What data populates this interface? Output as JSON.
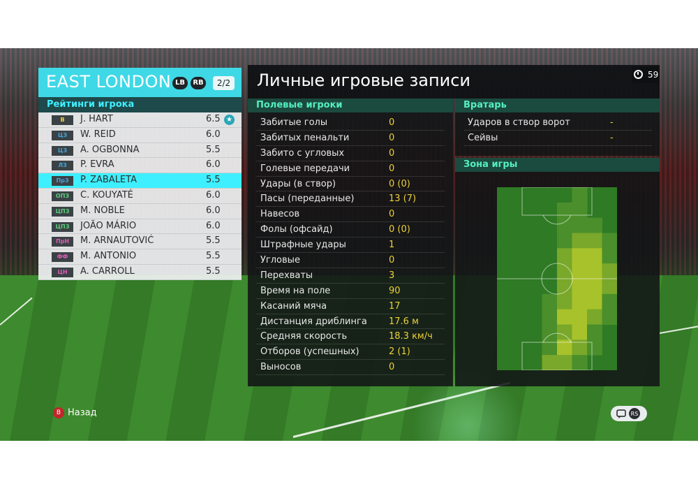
{
  "team": {
    "name": "EAST LONDON",
    "lb": "LB",
    "rb": "RB",
    "page": "2/2"
  },
  "ratings": {
    "header": "Рейтинги игрока",
    "players": [
      {
        "pos": "В",
        "pos_color": "#f2d23a",
        "name": "J. HART",
        "rating": "6.5",
        "star": "★"
      },
      {
        "pos": "ЦЗ",
        "pos_color": "#41a6e0",
        "name": "W. REID",
        "rating": "6.0"
      },
      {
        "pos": "ЦЗ",
        "pos_color": "#41a6e0",
        "name": "A. OGBONNA",
        "rating": "5.5"
      },
      {
        "pos": "ЛЗ",
        "pos_color": "#41a6e0",
        "name": "P. EVRA",
        "rating": "6.0"
      },
      {
        "pos": "ПрЗ",
        "pos_color": "#41a6e0",
        "name": "P. ZABALETA",
        "rating": "5.5"
      },
      {
        "pos": "ОПЗ",
        "pos_color": "#5ed17a",
        "name": "C. KOUYATÉ",
        "rating": "6.0"
      },
      {
        "pos": "ЦПЗ",
        "pos_color": "#5ed17a",
        "name": "M. NOBLE",
        "rating": "6.0"
      },
      {
        "pos": "ЦПЗ",
        "pos_color": "#5ed17a",
        "name": "JOÃO MÁRIO",
        "rating": "6.0"
      },
      {
        "pos": "ПрН",
        "pos_color": "#e05ab8",
        "name": "M. ARNAUTOVIĆ",
        "rating": "5.5"
      },
      {
        "pos": "ФФ",
        "pos_color": "#e05ab8",
        "name": "M. ANTONIO",
        "rating": "5.5"
      },
      {
        "pos": "ЦН",
        "pos_color": "#e05ab8",
        "name": "A. CARROLL",
        "rating": "5.5"
      }
    ],
    "selected_index": 4
  },
  "title": "Личные игровые записи",
  "timer": "59",
  "field": {
    "header": "Полевые игроки",
    "stats": [
      {
        "label": "Забитые голы",
        "value": "0"
      },
      {
        "label": "Забитых пенальти",
        "value": "0"
      },
      {
        "label": "Забито с угловых",
        "value": "0"
      },
      {
        "label": "Голевые передачи",
        "value": "0"
      },
      {
        "label": "Удары (в створ)",
        "value": "0 (0)"
      },
      {
        "label": "Пасы (переданные)",
        "value": "13 (7)"
      },
      {
        "label": "Навесов",
        "value": "0"
      },
      {
        "label": "Фолы (офсайд)",
        "value": "0 (0)"
      },
      {
        "label": "Штрафные удары",
        "value": "1"
      },
      {
        "label": "Угловые",
        "value": "0"
      },
      {
        "label": "Перехваты",
        "value": "3"
      },
      {
        "label": "Время на поле",
        "value": "90"
      },
      {
        "label": "Касаний мяча",
        "value": "17"
      },
      {
        "label": "Дистанция дриблинга",
        "value": "17.6 м"
      },
      {
        "label": "Средняя скорость",
        "value": "18.3 км/ч"
      },
      {
        "label": "Отборов (успешных)",
        "value": "2 (1)"
      },
      {
        "label": "Выносов",
        "value": "0"
      }
    ]
  },
  "goalkeeper": {
    "header": "Вратарь",
    "stats": [
      {
        "label": "Ударов в створ ворот",
        "value": "-"
      },
      {
        "label": "Сейвы",
        "value": "-"
      }
    ]
  },
  "zone": {
    "header": "Зона игры"
  },
  "footer": {
    "back_button": "B",
    "back_label": "Назад",
    "rs_label": "RS"
  },
  "colors": {
    "accent": "#3fd8e6",
    "stat_value": "#ecd23a",
    "section_text": "#55f0c0"
  }
}
